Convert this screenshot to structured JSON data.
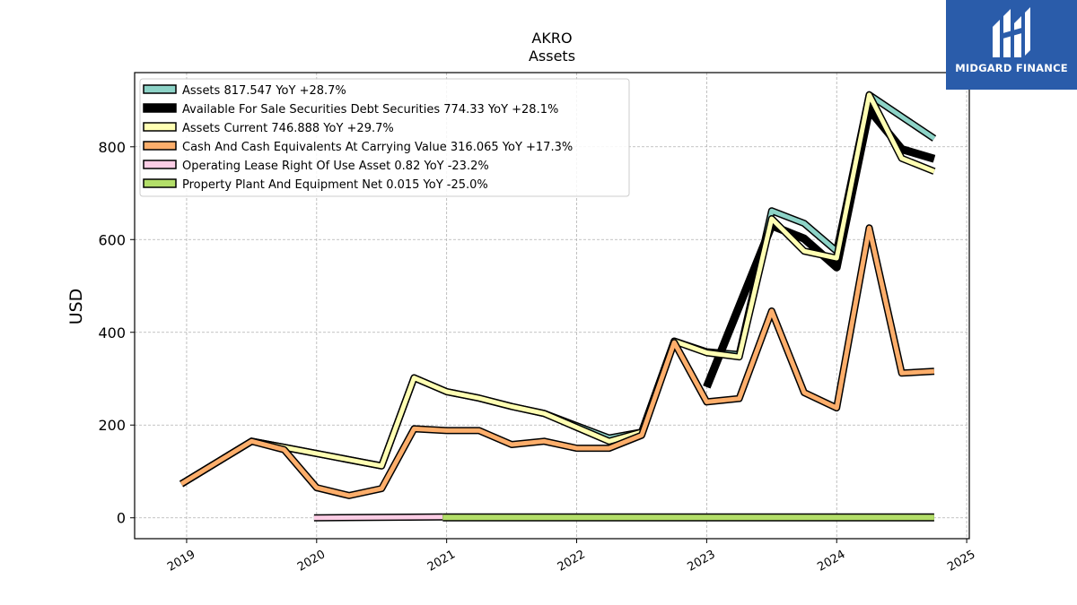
{
  "brand": {
    "name": "MIDGARD FINANCE",
    "color": "#2a5caa",
    "icon": "midgard-logo-icon"
  },
  "chart_data": {
    "type": "line",
    "title": "AKRO",
    "subtitle": "Assets",
    "ylabel": "USD",
    "xlabel": "",
    "ylim": [
      -45,
      960
    ],
    "xlim": [
      2018.6,
      2025.02
    ],
    "yticks": [
      0,
      200,
      400,
      600,
      800
    ],
    "xticks": [
      2019,
      2020,
      2021,
      2022,
      2023,
      2024,
      2025
    ],
    "grid": true,
    "legend_position": "top-left",
    "series": [
      {
        "name": "Assets  817.547 YoY +28.7%",
        "color": "#8dd3c7",
        "width": 5,
        "points": [
          [
            2018.96,
            73
          ],
          [
            2019.5,
            165
          ],
          [
            2019.75,
            152
          ],
          [
            2020.5,
            112
          ],
          [
            2020.75,
            302
          ],
          [
            2021.0,
            272
          ],
          [
            2021.25,
            258
          ],
          [
            2021.5,
            240
          ],
          [
            2021.75,
            225
          ],
          [
            2022.25,
            172
          ],
          [
            2022.5,
            185
          ],
          [
            2022.75,
            381
          ],
          [
            2023.0,
            358
          ],
          [
            2023.25,
            352
          ],
          [
            2023.5,
            662
          ],
          [
            2023.75,
            635
          ],
          [
            2024.0,
            575
          ],
          [
            2024.25,
            912
          ],
          [
            2024.5,
            865
          ],
          [
            2024.75,
            818
          ]
        ]
      },
      {
        "name": "Available For Sale Securities Debt Securities  774.33 YoY +28.1%",
        "color": "#000000",
        "width": 6,
        "points": [
          [
            2023.0,
            282
          ],
          [
            2023.5,
            630
          ],
          [
            2023.75,
            602
          ],
          [
            2024.0,
            540
          ],
          [
            2024.25,
            880
          ],
          [
            2024.5,
            795
          ],
          [
            2024.75,
            774
          ]
        ]
      },
      {
        "name": "Assets Current  746.888 YoY +29.7%",
        "color": "#ffffb3",
        "width": 5,
        "points": [
          [
            2018.96,
            73
          ],
          [
            2019.5,
            165
          ],
          [
            2019.75,
            152
          ],
          [
            2020.5,
            112
          ],
          [
            2020.75,
            302
          ],
          [
            2021.0,
            272
          ],
          [
            2021.25,
            258
          ],
          [
            2021.5,
            240
          ],
          [
            2021.75,
            225
          ],
          [
            2022.25,
            165
          ],
          [
            2022.5,
            185
          ],
          [
            2022.75,
            381
          ],
          [
            2023.0,
            356
          ],
          [
            2023.25,
            347
          ],
          [
            2023.5,
            645
          ],
          [
            2023.75,
            575
          ],
          [
            2024.0,
            560
          ],
          [
            2024.25,
            912
          ],
          [
            2024.5,
            775
          ],
          [
            2024.75,
            747
          ]
        ]
      },
      {
        "name": "Cash And Cash Equivalents At Carrying Value  316.065 YoY +17.3%",
        "color": "#fdae6b",
        "width": 5,
        "points": [
          [
            2018.96,
            73
          ],
          [
            2019.5,
            165
          ],
          [
            2019.75,
            147
          ],
          [
            2020.0,
            65
          ],
          [
            2020.25,
            48
          ],
          [
            2020.5,
            63
          ],
          [
            2020.75,
            192
          ],
          [
            2021.0,
            188
          ],
          [
            2021.25,
            188
          ],
          [
            2021.5,
            158
          ],
          [
            2021.75,
            165
          ],
          [
            2022.0,
            150
          ],
          [
            2022.25,
            150
          ],
          [
            2022.5,
            178
          ],
          [
            2022.75,
            378
          ],
          [
            2023.0,
            250
          ],
          [
            2023.25,
            257
          ],
          [
            2023.5,
            446
          ],
          [
            2023.75,
            270
          ],
          [
            2024.0,
            237
          ],
          [
            2024.25,
            625
          ],
          [
            2024.5,
            312
          ],
          [
            2024.75,
            316
          ]
        ]
      },
      {
        "name": "Operating Lease Right Of Use Asset  0.82 YoY -23.2%",
        "color": "#fccde5",
        "width": 5,
        "points": [
          [
            2019.98,
            0
          ],
          [
            2020.97,
            2
          ]
        ]
      },
      {
        "name": "Property Plant And Equipment Net  0.015 YoY -25.0%",
        "color": "#b3de69",
        "width": 6,
        "points": [
          [
            2020.97,
            1
          ],
          [
            2024.75,
            1
          ]
        ]
      }
    ]
  }
}
